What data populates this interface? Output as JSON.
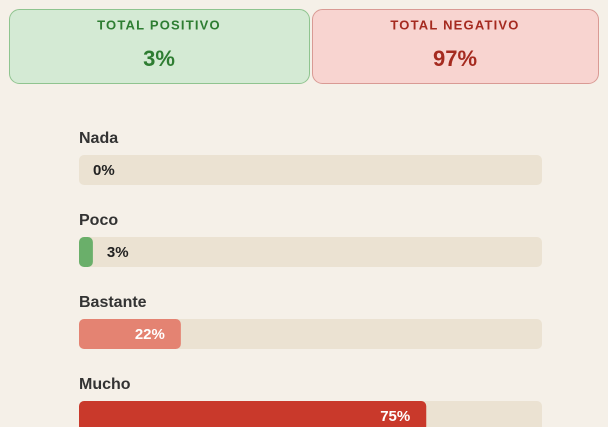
{
  "summary": [
    {
      "label": "TOTAL POSITIVO",
      "value": "3%"
    },
    {
      "label": "TOTAL NEGATIVO",
      "value": "97%"
    }
  ],
  "chart_data": {
    "type": "bar",
    "orientation": "horizontal",
    "categories": [
      "Nada",
      "Poco",
      "Bastante",
      "Mucho"
    ],
    "values": [
      0,
      3,
      22,
      75
    ],
    "value_labels": [
      "0%",
      "3%",
      "22%",
      "75%"
    ],
    "colors": [
      "#6aaf6a",
      "#6aaf6a",
      "#e48372",
      "#c9392b"
    ],
    "xlim": [
      0,
      100
    ]
  }
}
